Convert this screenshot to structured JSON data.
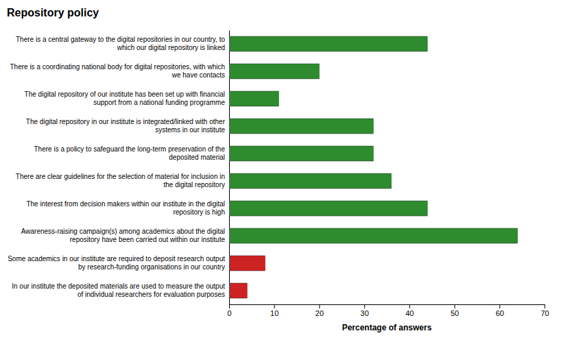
{
  "chart_data": {
    "type": "bar",
    "orientation": "horizontal",
    "title": "Repository policy",
    "xlabel": "Percentage of answers",
    "categories": [
      "There is a central gateway to the digital repositories in our country, to\nwhich our digital repository is linked",
      "There is a coordinating national body for digital repositories, with which\nwe have contacts",
      "The digital repository of our institute has been set up with financial\nsupport from a national funding programme",
      "The digital repository in our institute is integrated/linked with other\nsystems in our institute",
      "There is a policy to safeguard the long-term preservation of the\ndeposited material",
      "There are clear guidelines for the selection of material for inclusion in\nthe digital repository",
      "The interest from decision makers within our institute in the digital\nrepository is high",
      "Awareness-raising campaign(s) among academics about the digital\nrepository have been carried out within our institute",
      "Some academics in our institute are required to deposit research output\nby research-funding organisations in our country",
      "In our institute the deposited materials are used to measure the output\nof individual researchers for evaluation purposes"
    ],
    "values": [
      44,
      20,
      11,
      32,
      32,
      36,
      44,
      64,
      8,
      4
    ],
    "colors": [
      "#2e8b2e",
      "#2e8b2e",
      "#2e8b2e",
      "#2e8b2e",
      "#2e8b2e",
      "#2e8b2e",
      "#2e8b2e",
      "#2e8b2e",
      "#cc2222",
      "#cc2222"
    ],
    "xlim": [
      0,
      70
    ],
    "xticks": [
      0,
      10,
      20,
      30,
      40,
      50,
      60,
      70
    ],
    "grid": false
  }
}
